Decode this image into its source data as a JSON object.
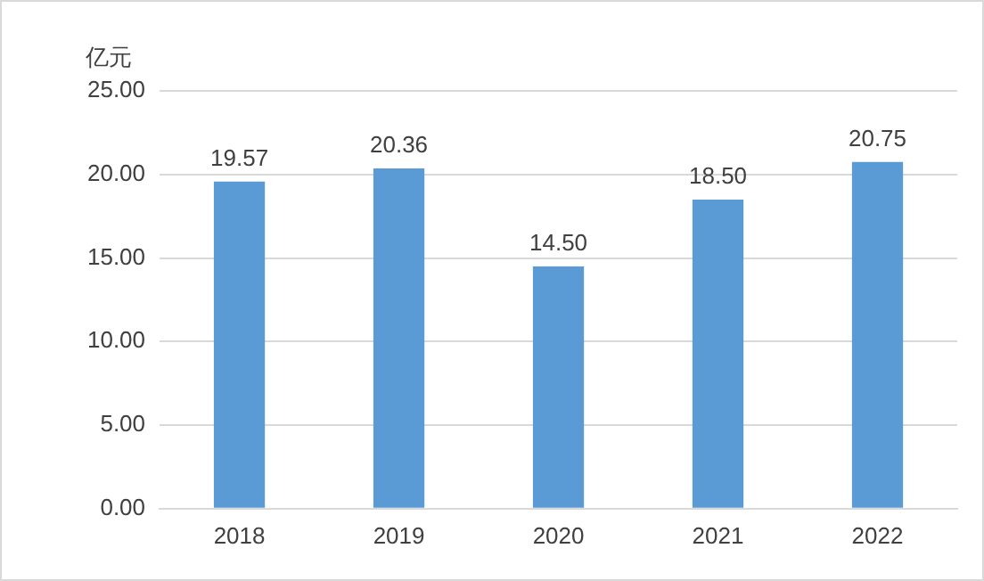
{
  "chart_data": {
    "type": "bar",
    "ylabel": "亿元",
    "categories": [
      "2018",
      "2019",
      "2020",
      "2021",
      "2022"
    ],
    "values": [
      19.57,
      20.36,
      14.5,
      18.5,
      20.75
    ],
    "value_labels": [
      "19.57",
      "20.36",
      "14.50",
      "18.50",
      "20.75"
    ],
    "color": "#5b9bd5",
    "ylim": [
      0,
      25
    ],
    "yticks": [
      {
        "value": 0,
        "label": "0.00"
      },
      {
        "value": 5,
        "label": "5.00"
      },
      {
        "value": 10,
        "label": "10.00"
      },
      {
        "value": 15,
        "label": "15.00"
      },
      {
        "value": 20,
        "label": "20.00"
      },
      {
        "value": 25,
        "label": "25.00"
      }
    ],
    "grid": "y"
  }
}
